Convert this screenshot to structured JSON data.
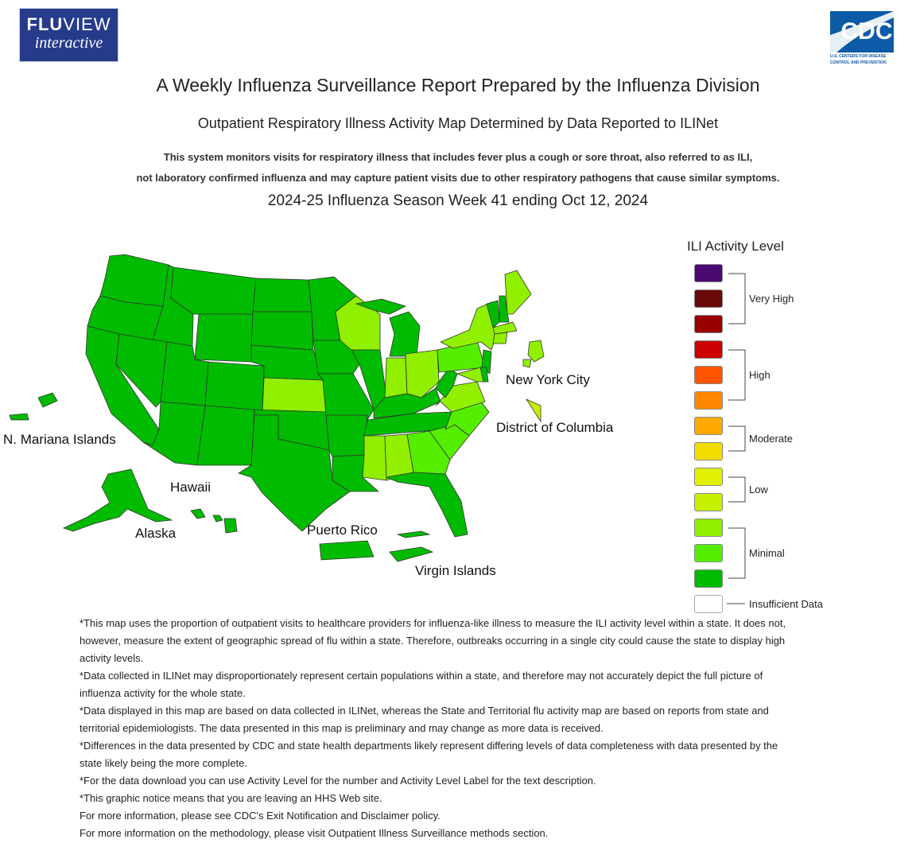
{
  "header": {
    "logo_left_line1_bold": "FLU",
    "logo_left_line1_rest": "VIEW",
    "logo_left_line2": "interactive",
    "logo_right_text": "CDC",
    "logo_right_sub_1": "U.S. CENTERS FOR DISEASE",
    "logo_right_sub_2": "CONTROL AND PREVENTION"
  },
  "titles": {
    "main": "A Weekly Influenza Surveillance Report Prepared by the Influenza Division",
    "sub": "Outpatient Respiratory Illness Activity Map Determined by Data Reported to ILINet",
    "desc_1": "This system monitors visits for respiratory illness that includes fever plus a cough or sore throat, also referred to as ILI,",
    "desc_2": "not laboratory confirmed influenza and may capture patient visits due to other respiratory pathogens that cause similar symptoms.",
    "season": "2024-25 Influenza Season Week 41 ending Oct 12, 2024"
  },
  "map_labels": {
    "new_york_city": "New York City",
    "district_of_columbia": "District of Columbia",
    "n_mariana_islands": "N. Mariana Islands",
    "hawaii": "Hawaii",
    "alaska": "Alaska",
    "puerto_rico": "Puerto Rico",
    "virgin_islands": "Virgin Islands"
  },
  "legend": {
    "title": "ILI Activity Level",
    "swatch_colors": [
      "#4b0a72",
      "#6b0a0a",
      "#990000",
      "#cc0000",
      "#ff5500",
      "#ff8800",
      "#ffaa00",
      "#f2dd00",
      "#e0f000",
      "#c4f000",
      "#90f000",
      "#55ee00",
      "#00bb00",
      "#ffffff"
    ],
    "groups": {
      "very_high": "Very High",
      "high": "High",
      "moderate": "Moderate",
      "low": "Low",
      "minimal": "Minimal",
      "insufficient": "Insufficient Data"
    }
  },
  "region_colors": {
    "minimal_dark": "#00bb00",
    "minimal_mid": "#55ee00",
    "minimal_light": "#90f000"
  },
  "notes": [
    "*This map uses the proportion of outpatient visits to healthcare providers for influenza-like illness to measure the ILI activity level within a state. It does not, however, measure the extent of geographic spread of flu within a state. Therefore, outbreaks occurring in a single city could cause the state to display high activity levels.",
    "*Data collected in ILINet may disproportionately represent certain populations within a state, and therefore may not accurately depict the full picture of influenza activity for the whole state.",
    "*Data displayed in this map are based on data collected in ILINet, whereas the State and Territorial flu activity map are based on reports from state and territorial epidemiologists. The data presented in this map is preliminary and may change as more data is received.",
    "*Differences in the data presented by CDC and state health departments likely represent differing levels of data completeness with data presented by the state likely being the more complete.",
    "*For the data download you can use Activity Level for the number and Activity Level Label for the text description.",
    "*This graphic notice means that you are leaving an HHS Web site.",
    "For more information, please see CDC's Exit Notification and Disclaimer policy.",
    "For more information on the methodology, please visit Outpatient Illness Surveillance methods section."
  ]
}
